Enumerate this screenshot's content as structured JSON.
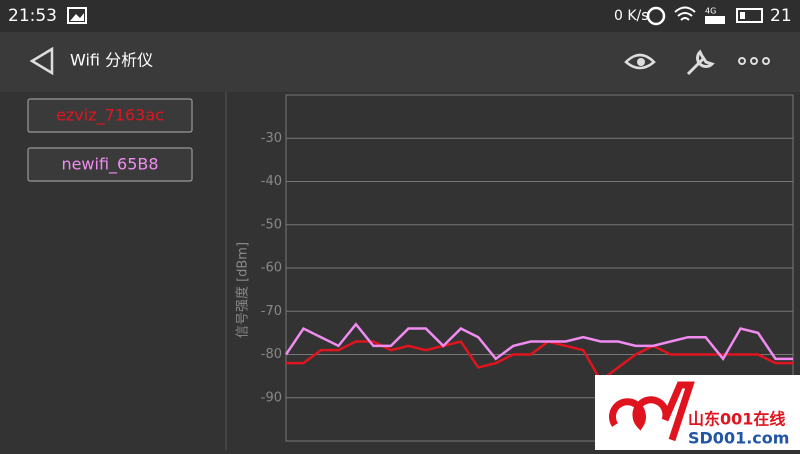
{
  "status_bar": {
    "time": "21:53",
    "speed": "0 K/s",
    "network": "4G",
    "battery": "21"
  },
  "app_bar": {
    "title": "Wifi 分析仪"
  },
  "watermark": {
    "name": "山东001在线",
    "url": "SD001.com"
  },
  "chart_data": {
    "type": "line",
    "y_label": "信号强度 [dBm]",
    "ylim": [
      -100,
      -20
    ],
    "yticks": [
      -30,
      -40,
      -50,
      -60,
      -70,
      -80,
      -90
    ],
    "grid": true,
    "series": [
      {
        "name": "ezviz_7163ac",
        "color": "#e0141e",
        "values": [
          -82,
          -82,
          -79,
          -79,
          -77,
          -77,
          -79,
          -78,
          -79,
          -78,
          -77,
          -83,
          -82,
          -80,
          -80,
          -77,
          -78,
          -79,
          -86,
          -83,
          -80,
          -78,
          -80,
          -80,
          -80,
          -80,
          -80,
          -80,
          -82,
          -82
        ]
      },
      {
        "name": "newifi_65B8",
        "color": "#f08cf0",
        "values": [
          -80,
          -74,
          -76,
          -78,
          -73,
          -78,
          -78,
          -74,
          -74,
          -78,
          -74,
          -76,
          -81,
          -78,
          -77,
          -77,
          -77,
          -76,
          -77,
          -77,
          -78,
          -78,
          -77,
          -76,
          -76,
          -81,
          -74,
          -75,
          -81,
          -81
        ]
      }
    ]
  }
}
